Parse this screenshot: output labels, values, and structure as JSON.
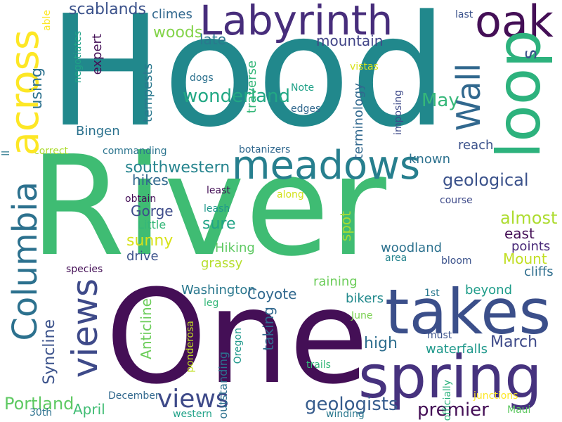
{
  "words": [
    {
      "id": "hood",
      "text": "Hood",
      "color": "#21888c"
    },
    {
      "id": "river",
      "text": "River",
      "color": "#3fbc73"
    },
    {
      "id": "one",
      "text": "One",
      "color": "#440f56"
    },
    {
      "id": "takes",
      "text": "takes",
      "color": "#3b4f8a"
    },
    {
      "id": "spring",
      "text": "spring",
      "color": "#46327e"
    },
    {
      "id": "labyrinth",
      "text": "Labyrinth",
      "color": "#472d7b"
    },
    {
      "id": "oak",
      "text": "oak",
      "color": "#440f56"
    },
    {
      "id": "loop",
      "text": "loop",
      "color": "#2db27d"
    },
    {
      "id": "meadows",
      "text": "meadows",
      "color": "#277f8e"
    },
    {
      "id": "across",
      "text": "across",
      "color": "#fde725"
    },
    {
      "id": "columbia",
      "text": "Columbia",
      "color": "#2c718e"
    },
    {
      "id": "views",
      "text": "views",
      "color": "#3e4a89"
    },
    {
      "id": "wall",
      "text": "Wall",
      "color": "#31688e"
    },
    {
      "id": "geologists",
      "text": "geologists",
      "color": "#365c8d"
    },
    {
      "id": "premier",
      "text": "premier",
      "color": "#440f56"
    },
    {
      "id": "portland",
      "text": "Portland",
      "color": "#5ec962"
    },
    {
      "id": "april",
      "text": "April",
      "color": "#3fbc73"
    },
    {
      "id": "scablands",
      "text": "scablands",
      "color": "#3b528b"
    },
    {
      "id": "climes",
      "text": "climes",
      "color": "#31688e"
    },
    {
      "id": "woods",
      "text": "woods",
      "color": "#84d44b"
    },
    {
      "id": "late",
      "text": "late",
      "color": "#2a788e"
    },
    {
      "id": "mountain",
      "text": "mountain",
      "color": "#414487"
    },
    {
      "id": "wonderland",
      "text": "wonderland",
      "color": "#22a884"
    },
    {
      "id": "may",
      "text": "May",
      "color": "#35b779"
    },
    {
      "id": "s",
      "text": "s",
      "color": "#3b528b"
    },
    {
      "id": "southwestern",
      "text": "southwestern",
      "color": "#25848e"
    },
    {
      "id": "hikes",
      "text": "hikes",
      "color": "#31688e"
    },
    {
      "id": "geological",
      "text": "geological",
      "color": "#3b528b"
    },
    {
      "id": "almost",
      "text": "almost",
      "color": "#addc30"
    },
    {
      "id": "east",
      "text": "east",
      "color": "#440f56"
    },
    {
      "id": "points",
      "text": "points",
      "color": "#482878"
    },
    {
      "id": "mount",
      "text": "Mount",
      "color": "#c2df23"
    },
    {
      "id": "cliffs",
      "text": "cliffs",
      "color": "#2e6e8e"
    },
    {
      "id": "bingen",
      "text": "Bingen",
      "color": "#2c728e"
    },
    {
      "id": "gorge",
      "text": "Gorge",
      "color": "#3e4c8a"
    },
    {
      "id": "sure",
      "text": "sure",
      "color": "#20a386"
    },
    {
      "id": "sunny",
      "text": "sunny",
      "color": "#d8e219"
    },
    {
      "id": "drive",
      "text": "drive",
      "color": "#3b528b"
    },
    {
      "id": "hiking",
      "text": "Hiking",
      "color": "#5ec962"
    },
    {
      "id": "grassy",
      "text": "grassy",
      "color": "#b5de2b"
    },
    {
      "id": "woodland",
      "text": "woodland",
      "color": "#2c718e"
    },
    {
      "id": "washington",
      "text": "Washington",
      "color": "#2a788e"
    },
    {
      "id": "coyote",
      "text": "Coyote",
      "color": "#31688e"
    },
    {
      "id": "raining",
      "text": "raining",
      "color": "#6ccd5a"
    },
    {
      "id": "bikers",
      "text": "bikers",
      "color": "#238a8d"
    },
    {
      "id": "high",
      "text": "high",
      "color": "#2e6e8e"
    },
    {
      "id": "march",
      "text": "March",
      "color": "#3e4a89"
    },
    {
      "id": "beyond",
      "text": "beyond",
      "color": "#1e9c89"
    },
    {
      "id": "waterfalls",
      "text": "waterfalls",
      "color": "#1f988b"
    },
    {
      "id": "known",
      "text": "known",
      "color": "#2c718e"
    },
    {
      "id": "reach",
      "text": "reach",
      "color": "#3b528b"
    },
    {
      "id": "correct",
      "text": "correct",
      "color": "#addc30"
    },
    {
      "id": "commanding",
      "text": "commanding",
      "color": "#2b748e"
    },
    {
      "id": "botanizers",
      "text": "botanizers",
      "color": "#31688e"
    },
    {
      "id": "little",
      "text": "Little",
      "color": "#35b779"
    },
    {
      "id": "obtain",
      "text": "obtain",
      "color": "#440f56"
    },
    {
      "id": "leash",
      "text": "leash",
      "color": "#1f988b"
    },
    {
      "id": "least",
      "text": "least",
      "color": "#440f56"
    },
    {
      "id": "along",
      "text": "along",
      "color": "#d2e21b"
    },
    {
      "id": "course",
      "text": "course",
      "color": "#3e4a89"
    },
    {
      "id": "area",
      "text": "area",
      "color": "#25848e"
    },
    {
      "id": "bloom",
      "text": "bloom",
      "color": "#3b528b"
    },
    {
      "id": "dogs",
      "text": "dogs",
      "color": "#2c718e"
    },
    {
      "id": "note",
      "text": "Note",
      "color": "#1fa187"
    },
    {
      "id": "edges",
      "text": "edges",
      "color": "#31688e"
    },
    {
      "id": "vistas",
      "text": "vistas",
      "color": "#d8e219"
    },
    {
      "id": "last",
      "text": "last",
      "color": "#3b528b"
    },
    {
      "id": "leg",
      "text": "leg",
      "color": "#35b779"
    },
    {
      "id": "june",
      "text": "June",
      "color": "#7ad151"
    },
    {
      "id": "1st",
      "text": "1st",
      "color": "#2a788e"
    },
    {
      "id": "must",
      "text": "must",
      "color": "#3b528b"
    },
    {
      "id": "junctions",
      "text": "junctions",
      "color": "#fde725"
    },
    {
      "id": "maui",
      "text": "Maui",
      "color": "#5ec962"
    },
    {
      "id": "winding",
      "text": "winding",
      "color": "#2a788e"
    },
    {
      "id": "western",
      "text": "western",
      "color": "#1fa187"
    },
    {
      "id": "december",
      "text": "December",
      "color": "#31688e"
    },
    {
      "id": "30th",
      "text": "30th",
      "color": "#2c718e"
    },
    {
      "id": "trails",
      "text": "trails",
      "color": "#35b779"
    },
    {
      "id": "species",
      "text": "species",
      "color": "#440f56"
    },
    {
      "id": "able",
      "text": "able",
      "color": "#fde725"
    },
    {
      "id": "negotiates",
      "text": "negotiates",
      "color": "#1fa187"
    },
    {
      "id": "expert",
      "text": "expert",
      "color": "#440f56"
    },
    {
      "id": "using",
      "text": "using",
      "color": "#2c718e"
    },
    {
      "id": "tempests",
      "text": "tempests",
      "color": "#2a788e"
    },
    {
      "id": "traverse",
      "text": "traverse",
      "color": "#35b779"
    },
    {
      "id": "terminology",
      "text": "terminology",
      "color": "#31688e"
    },
    {
      "id": "imposing",
      "text": "imposing",
      "color": "#3e4a89"
    },
    {
      "id": "spot",
      "text": "spot",
      "color": "#a5db36"
    },
    {
      "id": "anticline",
      "text": "Anticline",
      "color": "#6ccd5a"
    },
    {
      "id": "syncline",
      "text": "Syncline",
      "color": "#3b528b"
    },
    {
      "id": "taking",
      "text": "taking",
      "color": "#31688e"
    },
    {
      "id": "ponderosa",
      "text": "ponderosa",
      "color": "#c2df23"
    },
    {
      "id": "outstanding",
      "text": "outstanding",
      "color": "#2c718e"
    },
    {
      "id": "oregon",
      "text": "Oregon",
      "color": "#1f988b"
    },
    {
      "id": "officially",
      "text": "officially",
      "color": "#2db27d"
    },
    {
      "id": "ll",
      "text": "ll",
      "color": "#2a788e"
    },
    {
      "id": "signposted",
      "text": "signposted",
      "color": "#5ec962"
    }
  ]
}
